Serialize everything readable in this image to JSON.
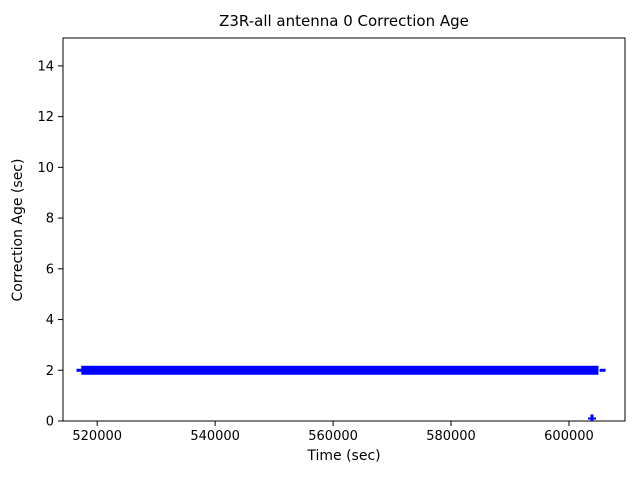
{
  "figure": {
    "title": "Z3R-all antenna 0 Correction Age",
    "xlabel": "Time (sec)",
    "ylabel": "Correction Age (sec)"
  },
  "chart_data": {
    "type": "scatter",
    "title": "Z3R-all antenna 0 Correction Age",
    "xlabel": "Time (sec)",
    "ylabel": "Correction Age (sec)",
    "xlim": [
      514200,
      609500
    ],
    "ylim": [
      0,
      15.1
    ],
    "xticks": [
      520000,
      540000,
      560000,
      580000,
      600000
    ],
    "yticks": [
      0,
      2,
      4,
      6,
      8,
      10,
      12,
      14
    ],
    "grid": false,
    "legend": false,
    "marker_color": "#0000ff",
    "series": [
      {
        "name": "antenna 0 correction age",
        "band": {
          "y": 2,
          "x_start": 517300,
          "x_end": 605000
        },
        "sparse_markers": [
          {
            "x": 517000,
            "y": 2
          },
          {
            "x": 605700,
            "y": 2
          }
        ],
        "outliers": [
          {
            "x": 603900,
            "y": 0.1
          }
        ]
      }
    ]
  }
}
